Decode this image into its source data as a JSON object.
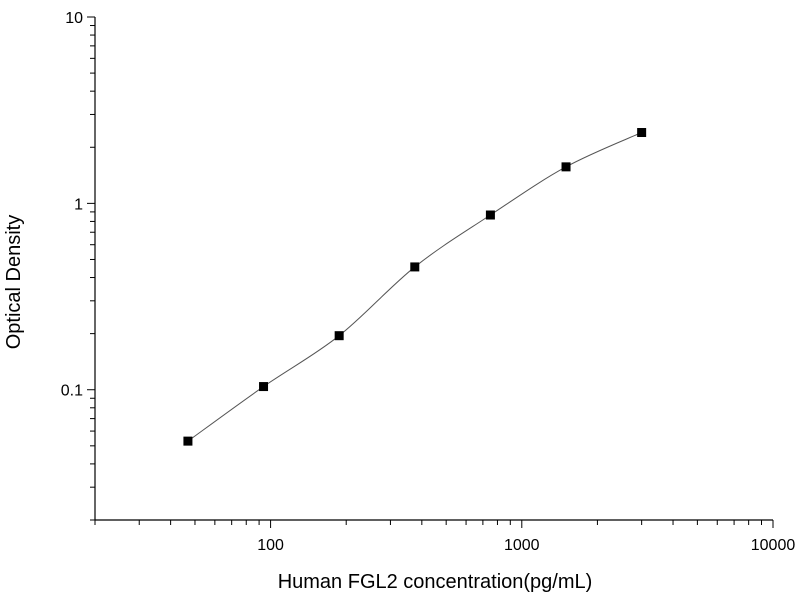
{
  "chart_data": {
    "type": "scatter",
    "title": "",
    "xlabel": "Human FGL2 concentration(pg/mL)",
    "ylabel": "Optical Density",
    "xscale": "log",
    "yscale": "log",
    "xlim": [
      20,
      10000
    ],
    "ylim": [
      0.02,
      10
    ],
    "xticks": [
      {
        "value": 100,
        "label": "100"
      },
      {
        "value": 1000,
        "label": "1000"
      },
      {
        "value": 10000,
        "label": "10000"
      }
    ],
    "yticks": [
      {
        "value": 0.1,
        "label": "0.1"
      },
      {
        "value": 1,
        "label": "1"
      },
      {
        "value": 10,
        "label": "10"
      }
    ],
    "series": [
      {
        "marker": "square",
        "color": "#000000",
        "x": [
          46.875,
          93.75,
          187.5,
          375,
          750,
          1500,
          3000
        ],
        "y": [
          0.053,
          0.104,
          0.195,
          0.456,
          0.866,
          1.57,
          2.4
        ]
      }
    ],
    "fit_curve": true,
    "grid": false,
    "legend": "none"
  }
}
